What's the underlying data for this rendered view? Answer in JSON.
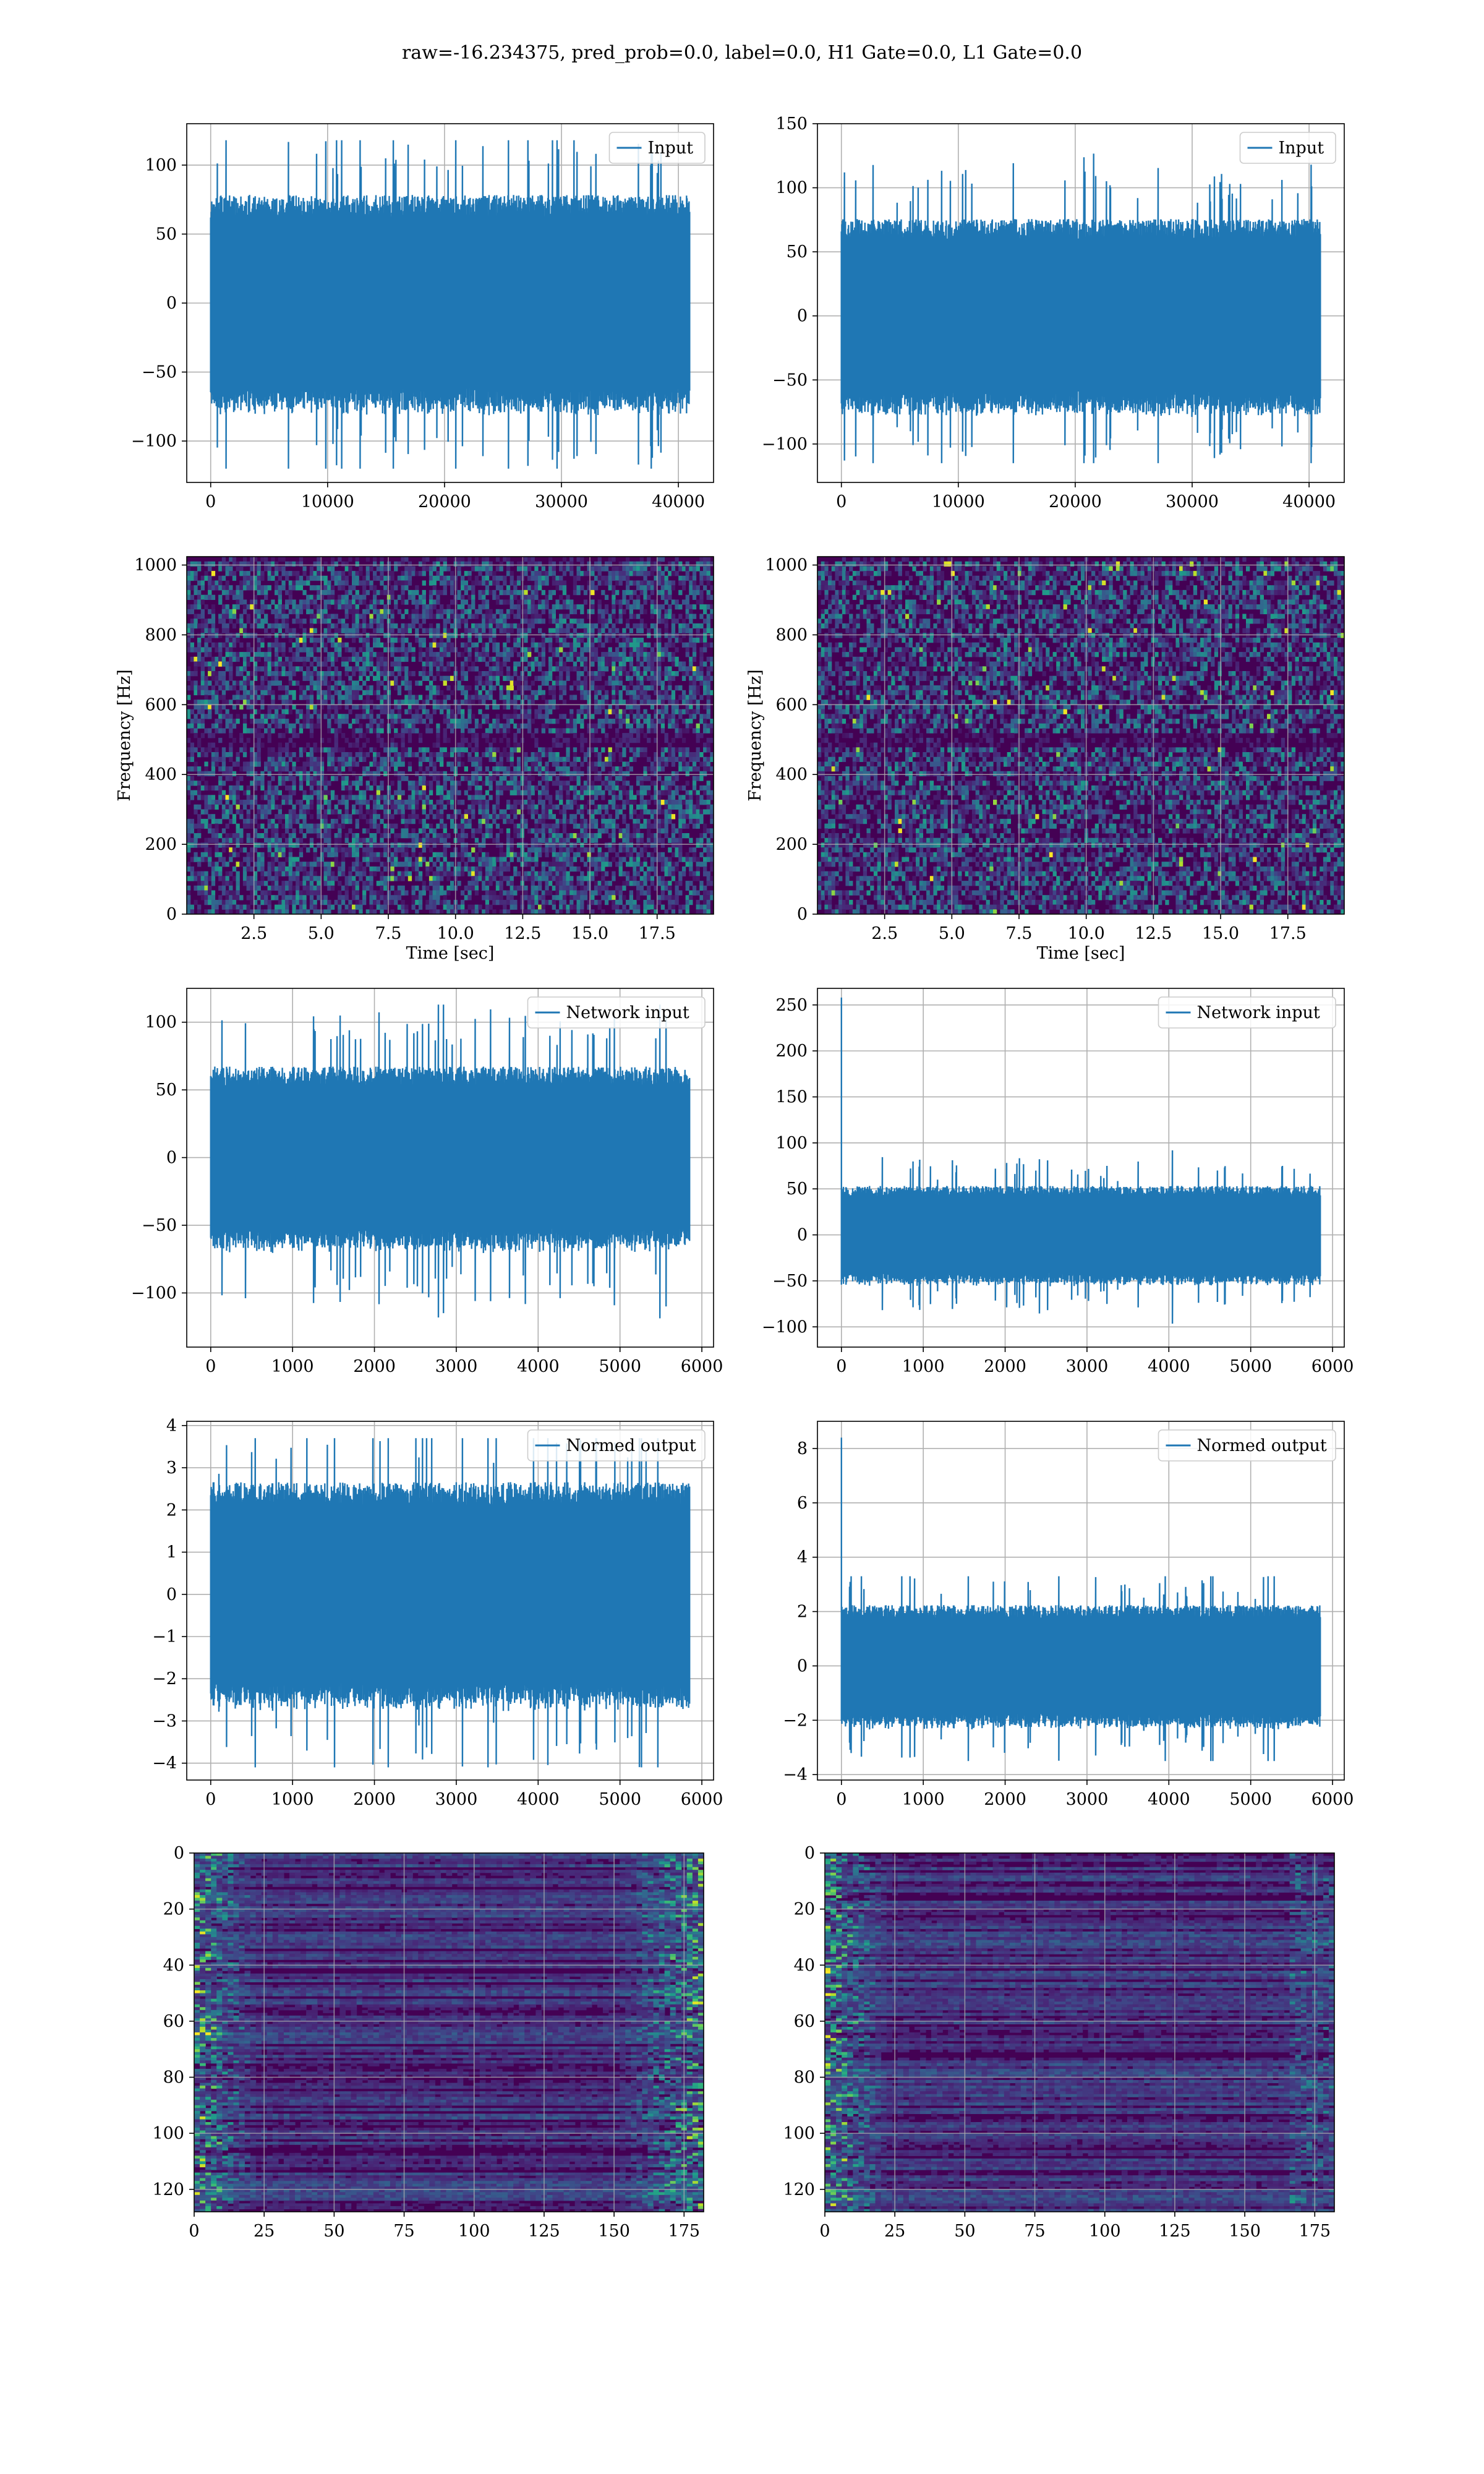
{
  "title": "raw=-16.234375, pred_prob=0.0, label=0.0, H1 Gate=0.0, L1 Gate=0.0",
  "colors": {
    "line": "#1f77b4",
    "viridis_dark": "#440154",
    "grid": "#b0b0b0"
  },
  "chart_data": [
    {
      "id": "input-h1",
      "type": "line",
      "row": 0,
      "col": 0,
      "series": [
        {
          "name": "Input",
          "kind": "noise",
          "n": 40960,
          "y_sigma": 28,
          "y_min": -120,
          "y_max": 118
        }
      ],
      "xlim": [
        -2048,
        43008
      ],
      "ylim": [
        -130,
        130
      ],
      "xticks": [
        0,
        10000,
        20000,
        30000,
        40000
      ],
      "yticks": [
        -100,
        -50,
        0,
        50,
        100
      ],
      "legend": "top-right",
      "grid": true
    },
    {
      "id": "input-l1",
      "type": "line",
      "row": 0,
      "col": 1,
      "series": [
        {
          "name": "Input",
          "kind": "noise",
          "n": 40960,
          "y_sigma": 27,
          "y_min": -115,
          "y_max": 138
        }
      ],
      "xlim": [
        -2048,
        43008
      ],
      "ylim": [
        -130,
        150
      ],
      "xticks": [
        0,
        10000,
        20000,
        30000,
        40000
      ],
      "yticks": [
        -100,
        -50,
        0,
        50,
        100,
        150
      ],
      "legend": "top-right",
      "grid": true
    },
    {
      "id": "spectrogram-h1",
      "type": "heatmap",
      "row": 1,
      "col": 0,
      "variant": "spectrogram",
      "xlim": [
        0.0,
        19.6
      ],
      "ylim": [
        0,
        1024
      ],
      "xticks": [
        2.5,
        5.0,
        7.5,
        10.0,
        12.5,
        15.0,
        17.5
      ],
      "xtick_labels": [
        "2.5",
        "5.0",
        "7.5",
        "10.0",
        "12.5",
        "15.0",
        "17.5"
      ],
      "yticks": [
        0,
        200,
        400,
        600,
        800,
        1000
      ],
      "xlabel": "Time [sec]",
      "ylabel": "Frequency [Hz]",
      "grid": true
    },
    {
      "id": "spectrogram-l1",
      "type": "heatmap",
      "row": 1,
      "col": 1,
      "variant": "spectrogram",
      "xlim": [
        0.0,
        19.6
      ],
      "ylim": [
        0,
        1024
      ],
      "xticks": [
        2.5,
        5.0,
        7.5,
        10.0,
        12.5,
        15.0,
        17.5
      ],
      "xtick_labels": [
        "2.5",
        "5.0",
        "7.5",
        "10.0",
        "12.5",
        "15.0",
        "17.5"
      ],
      "yticks": [
        0,
        200,
        400,
        600,
        800,
        1000
      ],
      "xlabel": "Time [sec]",
      "ylabel": "Frequency [Hz]",
      "grid": true
    },
    {
      "id": "network-input-h1",
      "type": "line",
      "row": 2,
      "col": 0,
      "series": [
        {
          "name": "Network input",
          "kind": "noise",
          "n": 5850,
          "y_sigma": 24,
          "y_min": -125,
          "y_max": 113
        }
      ],
      "xlim": [
        -293,
        6143
      ],
      "ylim": [
        -140,
        125
      ],
      "xticks": [
        0,
        1000,
        2000,
        3000,
        4000,
        5000,
        6000
      ],
      "yticks": [
        -100,
        -50,
        0,
        50,
        100
      ],
      "legend": "top-right",
      "grid": true
    },
    {
      "id": "network-input-l1",
      "type": "line",
      "row": 2,
      "col": 1,
      "series": [
        {
          "name": "Network input",
          "kind": "noise",
          "n": 5850,
          "y_sigma": 19,
          "y_min": -108,
          "y_max": 100,
          "spike": 258
        }
      ],
      "xlim": [
        -293,
        6143
      ],
      "ylim": [
        -122,
        268
      ],
      "xticks": [
        0,
        1000,
        2000,
        3000,
        4000,
        5000,
        6000
      ],
      "yticks": [
        -100,
        -50,
        0,
        50,
        100,
        150,
        200,
        250
      ],
      "legend": "top-right",
      "grid": true
    },
    {
      "id": "normed-output-h1",
      "type": "line",
      "row": 3,
      "col": 0,
      "series": [
        {
          "name": "Normed output",
          "kind": "noise",
          "n": 5850,
          "y_sigma": 0.95,
          "y_min": -4.1,
          "y_max": 3.7
        }
      ],
      "xlim": [
        -293,
        6143
      ],
      "ylim": [
        -4.4,
        4.1
      ],
      "xticks": [
        0,
        1000,
        2000,
        3000,
        4000,
        5000,
        6000
      ],
      "yticks": [
        -4,
        -3,
        -2,
        -1,
        0,
        1,
        2,
        3,
        4
      ],
      "legend": "top-right",
      "grid": true
    },
    {
      "id": "normed-output-l1",
      "type": "line",
      "row": 3,
      "col": 1,
      "series": [
        {
          "name": "Normed output",
          "kind": "noise",
          "n": 5850,
          "y_sigma": 0.8,
          "y_min": -3.5,
          "y_max": 3.3,
          "spike": 8.4
        }
      ],
      "xlim": [
        -293,
        6143
      ],
      "ylim": [
        -4.2,
        9.0
      ],
      "xticks": [
        0,
        1000,
        2000,
        3000,
        4000,
        5000,
        6000
      ],
      "yticks": [
        -4,
        -2,
        0,
        2,
        4,
        6,
        8
      ],
      "legend": "top-right",
      "grid": true
    },
    {
      "id": "feature-map-h1",
      "type": "heatmap",
      "row": 4,
      "col": 0,
      "variant": "feature-map",
      "bright_edges": "both",
      "xlim": [
        0,
        182
      ],
      "ylim": [
        128,
        0
      ],
      "xticks": [
        0,
        25,
        50,
        75,
        100,
        125,
        150,
        175
      ],
      "yticks": [
        0,
        20,
        40,
        60,
        80,
        100,
        120
      ],
      "grid": true
    },
    {
      "id": "feature-map-l1",
      "type": "heatmap",
      "row": 4,
      "col": 1,
      "variant": "feature-map",
      "bright_edges": "left",
      "xlim": [
        0,
        182
      ],
      "ylim": [
        128,
        0
      ],
      "xticks": [
        0,
        25,
        50,
        75,
        100,
        125,
        150,
        175
      ],
      "yticks": [
        0,
        20,
        40,
        60,
        80,
        100,
        120
      ],
      "grid": true
    }
  ]
}
